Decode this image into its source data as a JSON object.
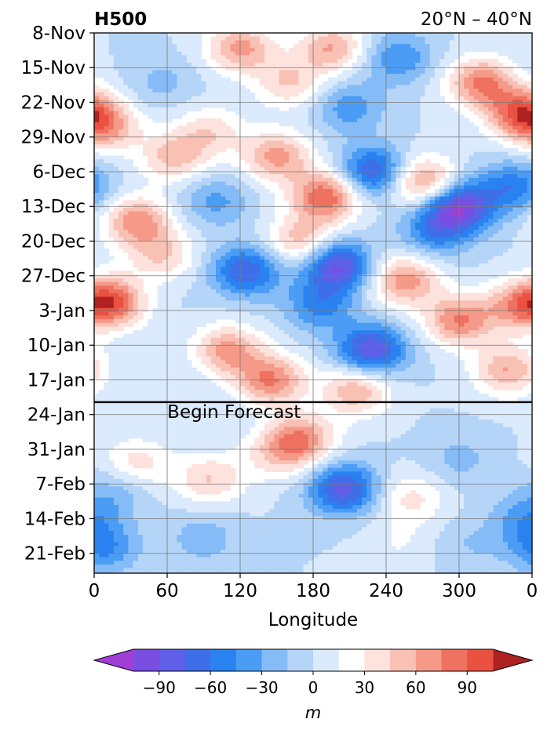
{
  "chart_data": {
    "type": "heatmap",
    "title": "H500",
    "subtitle": "20°N – 40°N",
    "xlabel": "Longitude",
    "ylabel": "",
    "x_ticks": [
      "0",
      "60",
      "120",
      "180",
      "240",
      "300",
      "0"
    ],
    "x_tick_values": [
      0,
      60,
      120,
      180,
      240,
      300,
      360
    ],
    "xlim": [
      0,
      360
    ],
    "y_ticks": [
      "8-Nov",
      "15-Nov",
      "22-Nov",
      "29-Nov",
      "6-Dec",
      "13-Dec",
      "20-Dec",
      "27-Dec",
      "3-Jan",
      "10-Jan",
      "17-Jan",
      "24-Jan",
      "31-Jan",
      "7-Feb",
      "14-Feb",
      "21-Feb"
    ],
    "y_tick_days": [
      0,
      7,
      14,
      21,
      28,
      35,
      42,
      49,
      56,
      63,
      70,
      77,
      84,
      91,
      98,
      105
    ],
    "ylim_days": [
      0,
      109
    ],
    "forecast_start_day": 74.5,
    "forecast_label": "Begin Forecast",
    "grid": true,
    "colorbar": {
      "label": "m",
      "ticks": [
        -90,
        -60,
        -30,
        0,
        30,
        60,
        90
      ],
      "tick_labels": [
        "−90",
        "−60",
        "−30",
        "0",
        "30",
        "60",
        "90"
      ],
      "levels": [
        -105,
        -90,
        -75,
        -60,
        -45,
        -30,
        -15,
        0,
        15,
        30,
        45,
        60,
        75,
        90,
        105
      ],
      "colors": [
        "#9f3fd6",
        "#7a4ee0",
        "#5f5fe8",
        "#3f6fe8",
        "#2a82f0",
        "#4a9cf5",
        "#85bcf8",
        "#b5d5f8",
        "#dbeafc",
        "#ffffff",
        "#fde2dd",
        "#f9c0b4",
        "#f59a88",
        "#ef7160",
        "#e95140",
        "#d83a2e",
        "#c42e26",
        "#ae2222"
      ],
      "extend": "both"
    },
    "anomaly_features": [
      {
        "lon": 10,
        "day": 19,
        "value": 55
      },
      {
        "lon": 20,
        "day": 54,
        "value": 95
      },
      {
        "lon": 35,
        "day": 38,
        "value": 70
      },
      {
        "lon": 35,
        "day": 53,
        "value": -25
      },
      {
        "lon": 55,
        "day": 10,
        "value": -20
      },
      {
        "lon": 65,
        "day": 25,
        "value": 50
      },
      {
        "lon": 55,
        "day": 45,
        "value": 45
      },
      {
        "lon": 95,
        "day": 20,
        "value": 40
      },
      {
        "lon": 100,
        "day": 34,
        "value": -35
      },
      {
        "lon": 120,
        "day": 3,
        "value": 65
      },
      {
        "lon": 110,
        "day": 64,
        "value": 65
      },
      {
        "lon": 125,
        "day": 48,
        "value": -75
      },
      {
        "lon": 145,
        "day": 70,
        "value": 75
      },
      {
        "lon": 150,
        "day": 25,
        "value": 65
      },
      {
        "lon": 160,
        "day": 10,
        "value": 45
      },
      {
        "lon": 170,
        "day": 42,
        "value": 55
      },
      {
        "lon": 185,
        "day": 55,
        "value": -50
      },
      {
        "lon": 190,
        "day": 33,
        "value": 90
      },
      {
        "lon": 195,
        "day": 3,
        "value": 60
      },
      {
        "lon": 200,
        "day": 47,
        "value": -95
      },
      {
        "lon": 210,
        "day": 15,
        "value": -40
      },
      {
        "lon": 215,
        "day": 72,
        "value": 60
      },
      {
        "lon": 228,
        "day": 64,
        "value": -90
      },
      {
        "lon": 230,
        "day": 28,
        "value": -80
      },
      {
        "lon": 255,
        "day": 50,
        "value": 70
      },
      {
        "lon": 250,
        "day": 5,
        "value": -45
      },
      {
        "lon": 270,
        "day": 30,
        "value": 75
      },
      {
        "lon": 280,
        "day": 40,
        "value": -50
      },
      {
        "lon": 300,
        "day": 35,
        "value": -100
      },
      {
        "lon": 300,
        "day": 58,
        "value": 75
      },
      {
        "lon": 318,
        "day": 10,
        "value": 75
      },
      {
        "lon": 345,
        "day": 31,
        "value": -55
      },
      {
        "lon": 350,
        "day": 16,
        "value": 80
      },
      {
        "lon": 350,
        "day": 55,
        "value": 65
      },
      {
        "lon": 340,
        "day": 68,
        "value": 60
      },
      {
        "lon": 20,
        "day": 92,
        "value": -25
      },
      {
        "lon": 35,
        "day": 87,
        "value": 40
      },
      {
        "lon": 95,
        "day": 90,
        "value": 45
      },
      {
        "lon": 170,
        "day": 82,
        "value": 70
      },
      {
        "lon": 150,
        "day": 85,
        "value": 35
      },
      {
        "lon": 205,
        "day": 92,
        "value": -85
      },
      {
        "lon": 90,
        "day": 102,
        "value": -25
      },
      {
        "lon": 8,
        "day": 104,
        "value": -45
      },
      {
        "lon": 260,
        "day": 94,
        "value": 35
      },
      {
        "lon": 250,
        "day": 103,
        "value": 15
      },
      {
        "lon": 300,
        "day": 86,
        "value": -20
      },
      {
        "lon": 355,
        "day": 98,
        "value": -35
      },
      {
        "lon": 310,
        "day": 103,
        "value": -15
      }
    ]
  }
}
